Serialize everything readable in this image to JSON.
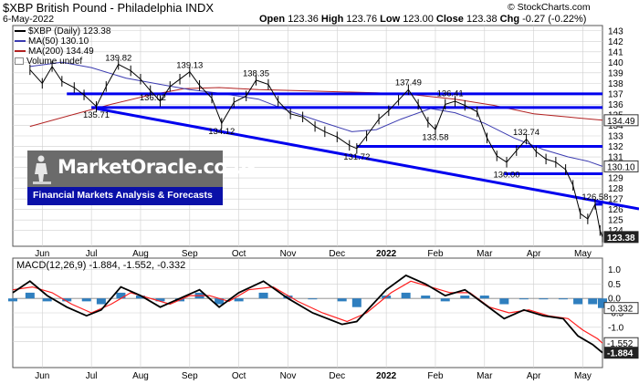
{
  "header": {
    "symbol_title": "$XBP British Pound - Philadelphia INDX",
    "brand": "© StockCharts.com",
    "date": "6-May-2022",
    "open_label": "Open",
    "open": "123.36",
    "high_label": "High",
    "high": "123.76",
    "low_label": "Low",
    "low": "123.00",
    "close_label": "Close",
    "close": "123.38",
    "chg_label": "Chg",
    "chg": "-0.27 (-0.22%)"
  },
  "legend": [
    {
      "label": "$XBP (Daily) 123.38",
      "color": "#000000"
    },
    {
      "label": "MA(50) 130.10",
      "color": "#3b3bb0"
    },
    {
      "label": "MA(200) 134.49",
      "color": "#b22222"
    },
    {
      "label": "Volume undef",
      "color": "#ffffff"
    }
  ],
  "watermark": {
    "title": "MarketOracle.co.uk",
    "tagline": "Financial Markets Analysis & Forecasts"
  },
  "macd_label": "MACD(12,26,9) -1.884, -1.552, -0.332",
  "colors": {
    "price": "#000000",
    "ma50": "#3b3bb0",
    "ma200": "#b22222",
    "trendlines": "#0000ee",
    "histogram": "#2f7fbf",
    "signal": "#ff2020",
    "grid": "#cfcfcf"
  },
  "chart_data": [
    {
      "type": "line",
      "name": "price",
      "ylim": [
        122.5,
        143.5
      ],
      "y_ticks": [
        124,
        125,
        126,
        127,
        128,
        129,
        130,
        131,
        132,
        133,
        134,
        135,
        136,
        137,
        138,
        139,
        140,
        141,
        142,
        143
      ],
      "x_tick_labels": [
        "Jun",
        "Jul",
        "Aug",
        "Sep",
        "Oct",
        "Nov",
        "Dec",
        "2022",
        "Feb",
        "Mar",
        "Apr",
        "May"
      ],
      "x_tick_positions": [
        0.6,
        1.6,
        2.6,
        3.6,
        4.6,
        5.6,
        6.6,
        7.6,
        8.6,
        9.6,
        10.6,
        11.6
      ],
      "x_range": [
        0,
        12
      ],
      "close_series": [
        [
          0.35,
          139.3
        ],
        [
          0.6,
          138.0
        ],
        [
          0.8,
          139.6
        ],
        [
          1.0,
          138.2
        ],
        [
          1.25,
          137.6
        ],
        [
          1.45,
          136.9
        ],
        [
          1.7,
          135.8
        ],
        [
          1.9,
          137.7
        ],
        [
          2.15,
          139.8
        ],
        [
          2.4,
          139.2
        ],
        [
          2.6,
          138.4
        ],
        [
          2.8,
          137.3
        ],
        [
          3.0,
          136.3
        ],
        [
          3.2,
          137.7
        ],
        [
          3.4,
          138.4
        ],
        [
          3.6,
          139.1
        ],
        [
          3.8,
          137.8
        ],
        [
          4.05,
          136.6
        ],
        [
          4.25,
          134.2
        ],
        [
          4.5,
          136.2
        ],
        [
          4.75,
          136.8
        ],
        [
          4.95,
          138.3
        ],
        [
          5.2,
          137.9
        ],
        [
          5.4,
          136.3
        ],
        [
          5.65,
          135.1
        ],
        [
          5.9,
          134.8
        ],
        [
          6.15,
          133.9
        ],
        [
          6.35,
          133.4
        ],
        [
          6.6,
          132.9
        ],
        [
          6.85,
          132.1
        ],
        [
          7.0,
          131.8
        ],
        [
          7.2,
          133.0
        ],
        [
          7.45,
          134.6
        ],
        [
          7.65,
          135.4
        ],
        [
          7.85,
          136.4
        ],
        [
          8.05,
          137.4
        ],
        [
          8.25,
          136.0
        ],
        [
          8.45,
          134.3
        ],
        [
          8.6,
          133.6
        ],
        [
          8.8,
          136.0
        ],
        [
          9.0,
          136.3
        ],
        [
          9.2,
          135.9
        ],
        [
          9.45,
          135.3
        ],
        [
          9.65,
          132.8
        ],
        [
          9.85,
          131.1
        ],
        [
          10.05,
          130.5
        ],
        [
          10.25,
          131.6
        ],
        [
          10.45,
          132.7
        ],
        [
          10.65,
          131.5
        ],
        [
          10.85,
          130.8
        ],
        [
          11.05,
          130.5
        ],
        [
          11.25,
          129.8
        ],
        [
          11.4,
          128.3
        ],
        [
          11.55,
          125.6
        ],
        [
          11.7,
          125.1
        ],
        [
          11.85,
          126.5
        ],
        [
          11.95,
          124.0
        ],
        [
          12.0,
          123.38
        ]
      ],
      "ma50_series": [
        [
          0.35,
          139.6
        ],
        [
          1.0,
          140.0
        ],
        [
          1.6,
          139.5
        ],
        [
          2.3,
          138.5
        ],
        [
          3.0,
          137.9
        ],
        [
          3.6,
          137.4
        ],
        [
          4.3,
          137.0
        ],
        [
          5.0,
          136.5
        ],
        [
          5.6,
          135.4
        ],
        [
          6.3,
          134.3
        ],
        [
          6.9,
          133.4
        ],
        [
          7.4,
          133.6
        ],
        [
          7.9,
          134.6
        ],
        [
          8.5,
          135.6
        ],
        [
          9.0,
          135.2
        ],
        [
          9.6,
          134.2
        ],
        [
          10.2,
          132.8
        ],
        [
          10.8,
          131.7
        ],
        [
          11.3,
          131.0
        ],
        [
          11.7,
          130.6
        ],
        [
          12.0,
          130.1
        ]
      ],
      "ma200_series": [
        [
          0.35,
          133.9
        ],
        [
          1.2,
          135.0
        ],
        [
          2.0,
          136.0
        ],
        [
          2.8,
          136.9
        ],
        [
          3.5,
          137.5
        ],
        [
          4.2,
          137.6
        ],
        [
          5.0,
          137.4
        ],
        [
          5.8,
          137.3
        ],
        [
          6.6,
          137.2
        ],
        [
          7.4,
          137.1
        ],
        [
          8.2,
          136.9
        ],
        [
          9.0,
          136.5
        ],
        [
          9.8,
          135.9
        ],
        [
          10.6,
          135.1
        ],
        [
          11.3,
          134.8
        ],
        [
          12.0,
          134.49
        ]
      ],
      "horizontal_levels": [
        137.0,
        135.7,
        132.0,
        129.4,
        126.5
      ],
      "trendline": {
        "from": [
          1.7,
          135.6
        ],
        "to": [
          12.0,
          126.4
        ]
      },
      "annotations": [
        {
          "label": "139.82",
          "x": 2.15,
          "y": 139.82
        },
        {
          "label": "139.13",
          "x": 3.6,
          "y": 139.13
        },
        {
          "label": "138.35",
          "x": 4.95,
          "y": 138.35
        },
        {
          "label": "137.49",
          "x": 8.05,
          "y": 137.49
        },
        {
          "label": "136.41",
          "x": 8.9,
          "y": 136.41
        },
        {
          "label": "135.71",
          "x": 1.7,
          "y": 135.71
        },
        {
          "label": "136.02",
          "x": 2.85,
          "y": 136.02
        },
        {
          "label": "134.12",
          "x": 4.25,
          "y": 134.12
        },
        {
          "label": "133.58",
          "x": 8.6,
          "y": 133.58
        },
        {
          "label": "132.74",
          "x": 10.45,
          "y": 132.74
        },
        {
          "label": "131.72",
          "x": 7.0,
          "y": 131.72
        },
        {
          "label": "130.00",
          "x": 10.05,
          "y": 130.0
        },
        {
          "label": "126.58",
          "x": 11.85,
          "y": 126.58
        }
      ],
      "value_tags": [
        {
          "label": "134.49",
          "y": 134.49,
          "style": "outline"
        },
        {
          "label": "130.10",
          "y": 130.1,
          "style": "outline"
        },
        {
          "label": "123.38",
          "y": 123.38,
          "style": "dark"
        }
      ]
    },
    {
      "type": "line",
      "name": "MACD(12,26,9)",
      "ylim": [
        -2.4,
        1.4
      ],
      "y_ticks": [
        1.0,
        0.5,
        0.0,
        -0.5,
        -1.0,
        -1.5
      ],
      "x_range": [
        0,
        12
      ],
      "macd": [
        [
          0.0,
          0.2
        ],
        [
          0.35,
          0.6
        ],
        [
          0.7,
          0.1
        ],
        [
          1.1,
          -0.3
        ],
        [
          1.5,
          -0.6
        ],
        [
          1.8,
          -0.4
        ],
        [
          2.2,
          0.4
        ],
        [
          2.6,
          0.1
        ],
        [
          3.0,
          -0.3
        ],
        [
          3.4,
          0.0
        ],
        [
          3.8,
          0.3
        ],
        [
          4.2,
          -0.3
        ],
        [
          4.6,
          0.2
        ],
        [
          5.1,
          0.6
        ],
        [
          5.6,
          0.0
        ],
        [
          6.1,
          -0.5
        ],
        [
          6.7,
          -0.9
        ],
        [
          7.0,
          -0.8
        ],
        [
          7.6,
          0.3
        ],
        [
          8.0,
          0.8
        ],
        [
          8.4,
          0.5
        ],
        [
          8.8,
          0.1
        ],
        [
          9.2,
          0.3
        ],
        [
          9.6,
          -0.2
        ],
        [
          10.0,
          -0.7
        ],
        [
          10.4,
          -0.4
        ],
        [
          10.8,
          -0.6
        ],
        [
          11.2,
          -0.7
        ],
        [
          11.5,
          -1.3
        ],
        [
          11.8,
          -1.6
        ],
        [
          12.0,
          -1.884
        ]
      ],
      "signal": [
        [
          0.0,
          0.3
        ],
        [
          0.4,
          0.4
        ],
        [
          0.8,
          0.2
        ],
        [
          1.2,
          -0.2
        ],
        [
          1.6,
          -0.5
        ],
        [
          2.0,
          -0.2
        ],
        [
          2.4,
          0.2
        ],
        [
          2.8,
          0.0
        ],
        [
          3.2,
          -0.2
        ],
        [
          3.6,
          0.1
        ],
        [
          4.0,
          0.1
        ],
        [
          4.4,
          -0.1
        ],
        [
          4.8,
          0.3
        ],
        [
          5.3,
          0.4
        ],
        [
          5.8,
          -0.1
        ],
        [
          6.3,
          -0.5
        ],
        [
          6.8,
          -0.8
        ],
        [
          7.2,
          -0.5
        ],
        [
          7.7,
          0.2
        ],
        [
          8.1,
          0.6
        ],
        [
          8.5,
          0.4
        ],
        [
          8.9,
          0.2
        ],
        [
          9.3,
          0.2
        ],
        [
          9.7,
          -0.3
        ],
        [
          10.1,
          -0.5
        ],
        [
          10.5,
          -0.4
        ],
        [
          10.9,
          -0.6
        ],
        [
          11.3,
          -0.7
        ],
        [
          11.6,
          -1.1
        ],
        [
          11.9,
          -1.4
        ],
        [
          12.0,
          -1.552
        ]
      ],
      "histogram": [
        [
          0.0,
          -0.1
        ],
        [
          0.35,
          0.2
        ],
        [
          0.7,
          -0.1
        ],
        [
          1.1,
          -0.1
        ],
        [
          1.5,
          -0.1
        ],
        [
          1.8,
          -0.2
        ],
        [
          2.2,
          0.2
        ],
        [
          2.6,
          0.1
        ],
        [
          3.0,
          -0.1
        ],
        [
          3.4,
          -0.1
        ],
        [
          3.8,
          0.2
        ],
        [
          4.2,
          -0.2
        ],
        [
          4.6,
          -0.1
        ],
        [
          5.1,
          0.2
        ],
        [
          5.6,
          0.1
        ],
        [
          6.1,
          0.0
        ],
        [
          6.7,
          -0.1
        ],
        [
          7.0,
          -0.3
        ],
        [
          7.6,
          0.1
        ],
        [
          8.0,
          0.2
        ],
        [
          8.4,
          0.1
        ],
        [
          8.8,
          -0.1
        ],
        [
          9.2,
          0.1
        ],
        [
          9.6,
          0.1
        ],
        [
          10.0,
          -0.2
        ],
        [
          10.4,
          0.0
        ],
        [
          10.8,
          0.0
        ],
        [
          11.2,
          0.0
        ],
        [
          11.5,
          -0.2
        ],
        [
          11.8,
          -0.2
        ],
        [
          12.0,
          -0.332
        ]
      ],
      "value_tags": [
        {
          "label": "-0.332",
          "y": -0.332,
          "style": "outline"
        },
        {
          "label": "-1.552",
          "y": -1.552,
          "style": "outline"
        },
        {
          "label": "-1.884",
          "y": -1.884,
          "style": "dark"
        }
      ]
    }
  ]
}
